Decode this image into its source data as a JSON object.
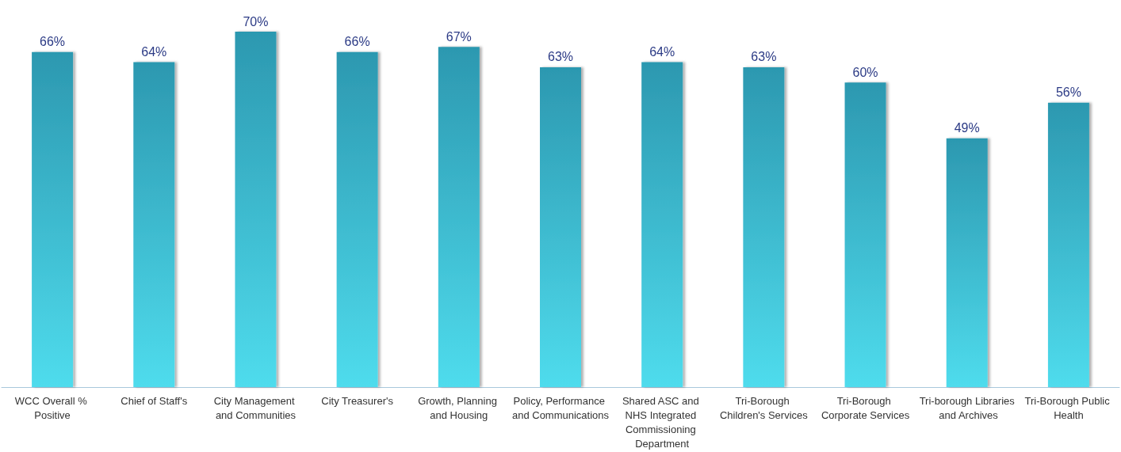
{
  "chart_data": {
    "type": "bar",
    "categories": [
      "WCC Overall % Positive",
      "Chief of Staff's",
      "City Management and Communities",
      "City Treasurer's",
      "Growth, Planning and Housing",
      "Policy, Performance and Communications",
      "Shared ASC and NHS Integrated Commissioning Department",
      "Tri-Borough Children's Services",
      "Tri-Borough Corporate Services",
      "Tri-borough Libraries and Archives",
      "Tri-Borough Public Health"
    ],
    "values": [
      66,
      64,
      70,
      66,
      67,
      63,
      64,
      63,
      60,
      49,
      56
    ],
    "value_labels": [
      "66%",
      "64%",
      "70%",
      "66%",
      "67%",
      "63%",
      "64%",
      "63%",
      "60%",
      "49%",
      "56%"
    ],
    "color": "#36b9d2"
  }
}
